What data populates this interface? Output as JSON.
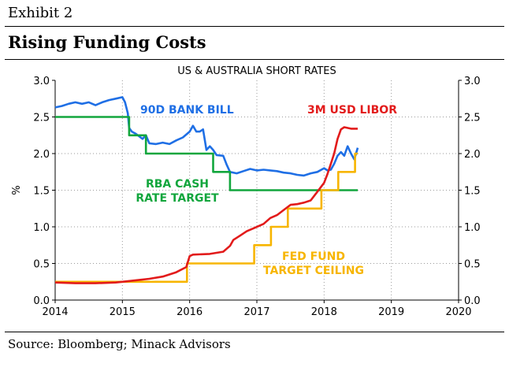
{
  "header": {
    "exhibit": "Exhibit 2",
    "title": "Rising Funding Costs"
  },
  "footer": {
    "source": "Source: Bloomberg; Minack Advisors"
  },
  "chart_data": {
    "type": "line",
    "title": "US & AUSTRALIA SHORT RATES",
    "ylabel": "%",
    "xlim": [
      2014,
      2020
    ],
    "ylim": [
      0,
      3.0
    ],
    "xticks": [
      "2014",
      "2015",
      "2016",
      "2017",
      "2018",
      "2019",
      "2020"
    ],
    "yticks_left": [
      "0.0",
      "0.5",
      "1.0",
      "1.5",
      "2.0",
      "2.5",
      "3.0"
    ],
    "yticks_right": [
      "0.0",
      "0.5",
      "1.0",
      "1.5",
      "2.0",
      "2.5",
      "3.0"
    ],
    "gridlines": "dotted",
    "series": [
      {
        "name": "90D BANK BILL",
        "color": "#1f6fe5",
        "label_lines": [
          "90D BANK BILL"
        ],
        "x": [
          2014.0,
          2014.1,
          2014.2,
          2014.3,
          2014.4,
          2014.5,
          2014.6,
          2014.7,
          2014.8,
          2014.9,
          2015.0,
          2015.04,
          2015.08,
          2015.1,
          2015.14,
          2015.2,
          2015.3,
          2015.35,
          2015.4,
          2015.5,
          2015.6,
          2015.7,
          2015.8,
          2015.9,
          2016.0,
          2016.05,
          2016.1,
          2016.15,
          2016.2,
          2016.25,
          2016.3,
          2016.35,
          2016.4,
          2016.5,
          2016.55,
          2016.6,
          2016.7,
          2016.8,
          2016.9,
          2017.0,
          2017.1,
          2017.2,
          2017.3,
          2017.4,
          2017.5,
          2017.6,
          2017.7,
          2017.8,
          2017.9,
          2018.0,
          2018.05,
          2018.1,
          2018.15,
          2018.2,
          2018.25,
          2018.3,
          2018.35,
          2018.4,
          2018.45,
          2018.5
        ],
        "values": [
          2.63,
          2.65,
          2.68,
          2.7,
          2.68,
          2.7,
          2.66,
          2.7,
          2.73,
          2.75,
          2.77,
          2.7,
          2.55,
          2.35,
          2.3,
          2.27,
          2.2,
          2.25,
          2.14,
          2.13,
          2.15,
          2.13,
          2.18,
          2.22,
          2.3,
          2.38,
          2.3,
          2.3,
          2.33,
          2.05,
          2.1,
          2.05,
          1.98,
          1.97,
          1.85,
          1.75,
          1.73,
          1.76,
          1.79,
          1.77,
          1.78,
          1.77,
          1.76,
          1.74,
          1.73,
          1.71,
          1.7,
          1.73,
          1.75,
          1.8,
          1.77,
          1.78,
          1.86,
          1.97,
          2.02,
          1.97,
          2.1,
          2.0,
          1.92,
          2.08
        ]
      },
      {
        "name": "RBA CASH RATE TARGET",
        "color": "#12a63d",
        "label_lines": [
          "RBA CASH",
          "RATE TARGET"
        ],
        "x": [
          2014.0,
          2015.1,
          2015.1,
          2015.35,
          2015.35,
          2016.35,
          2016.35,
          2016.6,
          2016.6,
          2018.5
        ],
        "values": [
          2.5,
          2.5,
          2.25,
          2.25,
          2.0,
          2.0,
          1.75,
          1.75,
          1.5,
          1.5
        ]
      },
      {
        "name": "3M USD LIBOR",
        "color": "#e21b1b",
        "label_lines": [
          "3M USD LIBOR"
        ],
        "x": [
          2014.0,
          2014.3,
          2014.6,
          2014.9,
          2015.0,
          2015.2,
          2015.4,
          2015.6,
          2015.8,
          2015.95,
          2016.0,
          2016.05,
          2016.3,
          2016.5,
          2016.6,
          2016.65,
          2016.75,
          2016.85,
          2016.95,
          2017.1,
          2017.2,
          2017.3,
          2017.4,
          2017.5,
          2017.6,
          2017.7,
          2017.8,
          2017.9,
          2018.0,
          2018.05,
          2018.1,
          2018.15,
          2018.2,
          2018.25,
          2018.3,
          2018.4,
          2018.5
        ],
        "values": [
          0.24,
          0.23,
          0.23,
          0.24,
          0.25,
          0.27,
          0.29,
          0.32,
          0.38,
          0.45,
          0.6,
          0.62,
          0.63,
          0.66,
          0.74,
          0.82,
          0.88,
          0.94,
          0.98,
          1.04,
          1.12,
          1.16,
          1.23,
          1.3,
          1.31,
          1.33,
          1.36,
          1.48,
          1.6,
          1.72,
          1.86,
          2.0,
          2.2,
          2.33,
          2.36,
          2.34,
          2.34
        ]
      },
      {
        "name": "FED FUND TARGET CEILING",
        "color": "#f7b500",
        "label_lines": [
          "FED FUND",
          "TARGET CEILING"
        ],
        "x": [
          2014.0,
          2015.96,
          2015.96,
          2016.96,
          2016.96,
          2017.21,
          2017.21,
          2017.46,
          2017.46,
          2017.96,
          2017.96,
          2018.21,
          2018.21,
          2018.46,
          2018.46,
          2018.5
        ],
        "values": [
          0.25,
          0.25,
          0.5,
          0.5,
          0.75,
          0.75,
          1.0,
          1.0,
          1.25,
          1.25,
          1.5,
          1.5,
          1.75,
          1.75,
          2.0,
          2.0
        ]
      }
    ]
  }
}
